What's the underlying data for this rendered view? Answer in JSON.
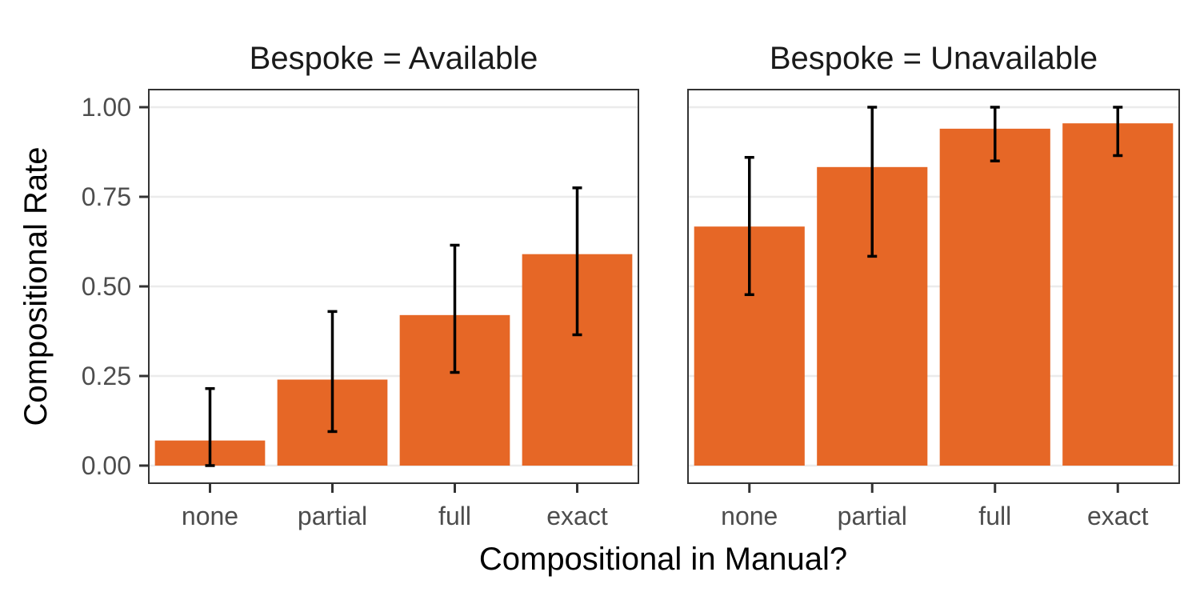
{
  "chart_data": {
    "type": "bar",
    "xlabel": "Compositional in Manual?",
    "ylabel": "Compositional Rate",
    "categories": [
      "none",
      "partial",
      "full",
      "exact"
    ],
    "ylim": [
      0,
      1.05
    ],
    "yticks": [
      "0.00",
      "0.25",
      "0.50",
      "0.75",
      "1.00"
    ],
    "bar_color": "#E66726",
    "error_bar_color": "#000000",
    "grid": true,
    "facets": [
      {
        "title": "Bespoke = Available",
        "values": [
          0.07,
          0.24,
          0.42,
          0.59
        ],
        "lower": [
          0.0,
          0.095,
          0.26,
          0.365
        ],
        "upper": [
          0.215,
          0.43,
          0.615,
          0.775
        ]
      },
      {
        "title": "Bespoke = Unavailable",
        "values": [
          0.667,
          0.833,
          0.94,
          0.955
        ],
        "lower": [
          0.477,
          0.584,
          0.85,
          0.865
        ],
        "upper": [
          0.86,
          1.0,
          1.0,
          1.0
        ]
      }
    ]
  }
}
